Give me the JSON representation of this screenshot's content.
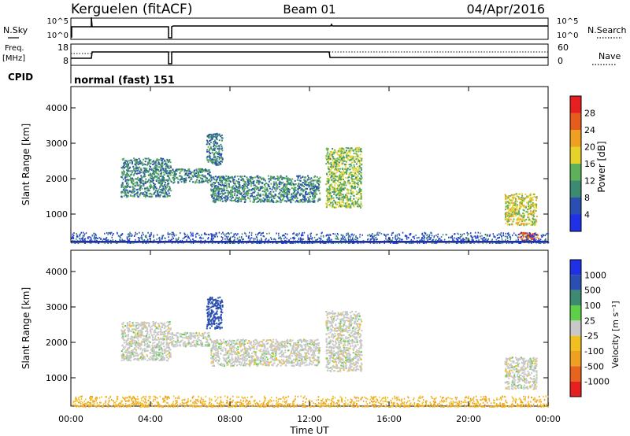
{
  "header": {
    "station": "Kerguelen (fitACF)",
    "beam": "Beam 01",
    "date": "04/Apr/2016"
  },
  "status_panels": {
    "nsky_label": "N.Sky",
    "nsearch_label": "N.Search",
    "freq_label_line1": "Freq.",
    "freq_label_line2": "[MHz]",
    "nave_label": "Nave",
    "cpid_label": "CPID",
    "cpid_value": "normal (fast) 151",
    "noise_ticks": [
      "10^5",
      "10^0"
    ],
    "freq_ticks": [
      "18",
      "8"
    ],
    "nave_ticks": [
      "60",
      "0"
    ]
  },
  "axes": {
    "ylabel": "Slant Range [km]",
    "yticks": [
      1000,
      2000,
      3000,
      4000
    ],
    "xlabel": "Time UT",
    "xticks": [
      "00:00",
      "04:00",
      "08:00",
      "12:00",
      "16:00",
      "20:00",
      "00:00"
    ]
  },
  "colorbars": {
    "power_label": "Power [dB]",
    "power_ticks": [
      4,
      8,
      12,
      16,
      20,
      24,
      28
    ],
    "power_colors": [
      "#1f30e6",
      "#2a4fb0",
      "#3c8a72",
      "#5fb05a",
      "#e6d22a",
      "#f0a020",
      "#e65b1e",
      "#e62020"
    ],
    "velocity_label": "Velocity [m s⁻¹]",
    "velocity_ticks": [
      "1000",
      "500",
      "100",
      "25",
      "-25",
      "-100",
      "-500",
      "-1000"
    ],
    "velocity_colors": [
      "#1f30e6",
      "#2a4fb0",
      "#3c8a72",
      "#5fcf4a",
      "#c8c8c8",
      "#f0c020",
      "#f0a020",
      "#e6641e",
      "#e62020"
    ]
  },
  "chart_data": [
    {
      "type": "heatmap",
      "name": "power",
      "xlim_hours": [
        0,
        24
      ],
      "ylim_km": [
        200,
        4600
      ],
      "echo_regions": [
        {
          "t0": 2.5,
          "t1": 5.0,
          "r0": 1500,
          "r1": 2600,
          "power": 10
        },
        {
          "t0": 5.0,
          "t1": 7.0,
          "r0": 1900,
          "r1": 2300,
          "power": 10
        },
        {
          "t0": 6.8,
          "t1": 7.6,
          "r0": 2400,
          "r1": 3300,
          "power": 9
        },
        {
          "t0": 7.0,
          "t1": 12.5,
          "r0": 1350,
          "r1": 2100,
          "power": 10
        },
        {
          "t0": 12.8,
          "t1": 14.6,
          "r0": 1200,
          "r1": 2900,
          "power": 15
        },
        {
          "t0": 21.8,
          "t1": 23.4,
          "r0": 700,
          "r1": 1600,
          "power": 17
        },
        {
          "t0": 22.5,
          "t1": 23.5,
          "r0": 250,
          "r1": 500,
          "power": 26
        }
      ],
      "ground_clutter": {
        "r0": 200,
        "r1": 500,
        "power": 6
      }
    },
    {
      "type": "heatmap",
      "name": "velocity",
      "xlim_hours": [
        0,
        24
      ],
      "ylim_km": [
        200,
        4600
      ],
      "echo_regions": [
        {
          "t0": 2.5,
          "t1": 5.0,
          "r0": 1500,
          "r1": 2600,
          "velocity": 0
        },
        {
          "t0": 5.0,
          "t1": 7.0,
          "r0": 1900,
          "r1": 2300,
          "velocity": 0
        },
        {
          "t0": 6.8,
          "t1": 7.6,
          "r0": 2400,
          "r1": 3300,
          "velocity": 300
        },
        {
          "t0": 7.0,
          "t1": 12.5,
          "r0": 1350,
          "r1": 2100,
          "velocity": 0
        },
        {
          "t0": 12.8,
          "t1": 14.6,
          "r0": 1200,
          "r1": 2900,
          "velocity": 0
        },
        {
          "t0": 21.8,
          "t1": 23.4,
          "r0": 700,
          "r1": 1600,
          "velocity": 0
        }
      ],
      "ground_clutter": {
        "r0": 200,
        "r1": 500,
        "velocity": -60
      }
    }
  ]
}
